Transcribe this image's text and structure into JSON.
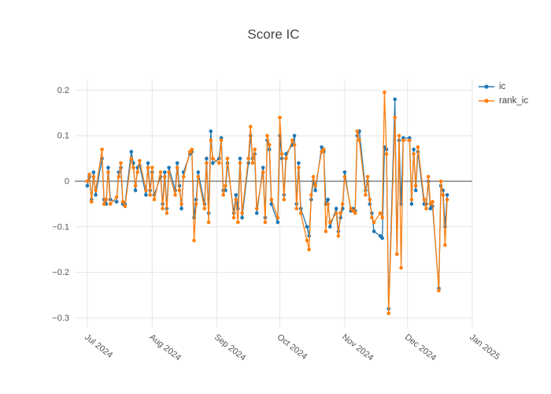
{
  "chart_data": {
    "type": "line",
    "mode": "lines+markers",
    "marker": "circle",
    "title": "Score IC",
    "xlabel": "",
    "ylabel": "",
    "grid": true,
    "legend_position": "top-right-outside",
    "ylim": [
      -0.32,
      0.225
    ],
    "x_range": [
      "2024-06-25",
      "2025-01-01"
    ],
    "y_ticks": [
      0.2,
      0.1,
      0,
      -0.1,
      -0.2,
      -0.3
    ],
    "y_tick_labels": [
      "0.2",
      "0.1",
      "0",
      "−0.1",
      "−0.2",
      "−0.3"
    ],
    "x_ticks": [
      "2024-07-01",
      "2024-08-01",
      "2024-09-01",
      "2024-10-01",
      "2024-11-01",
      "2024-12-01",
      "2025-01-01"
    ],
    "x_tick_labels": [
      "Jul 2024",
      "Aug 2024",
      "Sep 2024",
      "Oct 2024",
      "Nov 2024",
      "Dec 2024",
      "Jan 2025"
    ],
    "x": [
      "2024-07-01",
      "2024-07-02",
      "2024-07-03",
      "2024-07-04",
      "2024-07-05",
      "2024-07-08",
      "2024-07-09",
      "2024-07-10",
      "2024-07-11",
      "2024-07-12",
      "2024-07-15",
      "2024-07-16",
      "2024-07-17",
      "2024-07-18",
      "2024-07-19",
      "2024-07-22",
      "2024-07-23",
      "2024-07-24",
      "2024-07-25",
      "2024-07-26",
      "2024-07-29",
      "2024-07-30",
      "2024-07-31",
      "2024-08-01",
      "2024-08-02",
      "2024-08-05",
      "2024-08-06",
      "2024-08-07",
      "2024-08-08",
      "2024-08-09",
      "2024-08-12",
      "2024-08-13",
      "2024-08-14",
      "2024-08-15",
      "2024-08-16",
      "2024-08-19",
      "2024-08-20",
      "2024-08-21",
      "2024-08-22",
      "2024-08-23",
      "2024-08-26",
      "2024-08-27",
      "2024-08-28",
      "2024-08-29",
      "2024-08-30",
      "2024-09-02",
      "2024-09-03",
      "2024-09-04",
      "2024-09-05",
      "2024-09-06",
      "2024-09-09",
      "2024-09-10",
      "2024-09-11",
      "2024-09-12",
      "2024-09-13",
      "2024-09-16",
      "2024-09-17",
      "2024-09-18",
      "2024-09-19",
      "2024-09-20",
      "2024-09-23",
      "2024-09-24",
      "2024-09-25",
      "2024-09-26",
      "2024-09-27",
      "2024-09-30",
      "2024-10-01",
      "2024-10-02",
      "2024-10-03",
      "2024-10-04",
      "2024-10-07",
      "2024-10-08",
      "2024-10-09",
      "2024-10-10",
      "2024-10-11",
      "2024-10-14",
      "2024-10-15",
      "2024-10-16",
      "2024-10-17",
      "2024-10-18",
      "2024-10-21",
      "2024-10-22",
      "2024-10-23",
      "2024-10-24",
      "2024-10-25",
      "2024-10-28",
      "2024-10-29",
      "2024-10-30",
      "2024-10-31",
      "2024-11-01",
      "2024-11-04",
      "2024-11-05",
      "2024-11-06",
      "2024-11-07",
      "2024-11-08",
      "2024-11-11",
      "2024-11-12",
      "2024-11-13",
      "2024-11-14",
      "2024-11-15",
      "2024-11-18",
      "2024-11-19",
      "2024-11-20",
      "2024-11-21",
      "2024-11-22",
      "2024-11-25",
      "2024-11-26",
      "2024-11-27",
      "2024-11-28",
      "2024-11-29",
      "2024-12-02",
      "2024-12-03",
      "2024-12-04",
      "2024-12-05",
      "2024-12-06",
      "2024-12-09",
      "2024-12-10",
      "2024-12-11",
      "2024-12-12",
      "2024-12-13",
      "2024-12-16",
      "2024-12-17",
      "2024-12-18",
      "2024-12-19",
      "2024-12-20"
    ],
    "series": [
      {
        "name": "ic",
        "color": "#1f77b4",
        "values": [
          -0.01,
          0.01,
          -0.04,
          0.02,
          -0.03,
          0.05,
          -0.04,
          -0.05,
          0.03,
          -0.04,
          -0.045,
          0.02,
          0.03,
          -0.05,
          -0.05,
          0.065,
          0.04,
          -0.02,
          0.03,
          0.035,
          -0.03,
          0.04,
          -0.02,
          0.02,
          -0.03,
          0.01,
          -0.05,
          0.02,
          -0.06,
          0.03,
          -0.02,
          0.04,
          -0.01,
          -0.06,
          0.02,
          0.06,
          0.065,
          -0.08,
          -0.04,
          0.02,
          -0.05,
          0.05,
          -0.07,
          0.11,
          0.04,
          0.05,
          0.095,
          -0.02,
          -0.02,
          0.04,
          -0.07,
          -0.03,
          -0.06,
          0.05,
          -0.08,
          0.04,
          0.1,
          0.05,
          0.06,
          -0.07,
          0.03,
          -0.08,
          0.09,
          0.07,
          -0.05,
          -0.09,
          0.1,
          0.05,
          -0.03,
          0.06,
          0.08,
          0.1,
          -0.05,
          0.04,
          -0.06,
          -0.1,
          -0.12,
          -0.04,
          0,
          -0.02,
          0.075,
          0.065,
          -0.05,
          -0.04,
          -0.1,
          -0.06,
          -0.11,
          -0.08,
          -0.06,
          0.02,
          -0.065,
          -0.06,
          -0.065,
          0.1,
          0.11,
          -0.02,
          0,
          -0.05,
          -0.07,
          -0.11,
          -0.12,
          -0.125,
          0.075,
          0.07,
          -0.28,
          0.18,
          -0.16,
          0.09,
          -0.05,
          0.095,
          0.095,
          -0.05,
          0.07,
          -0.02,
          0.065,
          -0.05,
          -0.05,
          0,
          -0.06,
          -0.055,
          -0.235,
          -0.01,
          -0.02,
          -0.1,
          -0.03
        ]
      },
      {
        "name": "rank_ic",
        "color": "#ff7f0e",
        "values": [
          0,
          0.015,
          -0.045,
          0.01,
          -0.02,
          0.07,
          -0.05,
          -0.04,
          0.02,
          -0.05,
          -0.035,
          0.01,
          0.04,
          -0.045,
          -0.055,
          0.05,
          0.03,
          -0.01,
          0.02,
          0.045,
          -0.02,
          0.03,
          -0.03,
          0.03,
          -0.04,
          0.02,
          -0.06,
          0.01,
          -0.07,
          0.02,
          -0.03,
          0.03,
          -0.02,
          -0.05,
          0.01,
          0.065,
          0.07,
          -0.13,
          -0.05,
          0.01,
          -0.06,
          0.04,
          -0.09,
          0.09,
          0.05,
          0.04,
          0.09,
          -0.03,
          -0.01,
          0.05,
          -0.08,
          -0.04,
          -0.09,
          0.04,
          -0.07,
          0.05,
          0.12,
          0.04,
          0.07,
          -0.06,
          0.02,
          -0.09,
          0.1,
          0.08,
          -0.04,
          -0.08,
          0.14,
          0.06,
          -0.04,
          0.05,
          0.09,
          0.08,
          -0.06,
          0.03,
          -0.07,
          -0.13,
          -0.15,
          -0.03,
          0.01,
          -0.01,
          0.065,
          0.07,
          -0.11,
          -0.05,
          -0.09,
          -0.07,
          -0.12,
          -0.07,
          -0.05,
          0.01,
          -0.06,
          -0.065,
          -0.07,
          0.11,
          0.09,
          -0.03,
          0.01,
          -0.04,
          -0.08,
          -0.09,
          -0.07,
          -0.08,
          0.195,
          0.06,
          -0.29,
          0.14,
          -0.16,
          0.1,
          -0.19,
          0.09,
          0.09,
          -0.04,
          0.06,
          -0.01,
          0.075,
          -0.04,
          -0.06,
          0.01,
          -0.05,
          -0.045,
          -0.24,
          0,
          -0.03,
          -0.14,
          -0.04
        ]
      }
    ]
  },
  "colors": {
    "background": "#ffffff",
    "grid": "#e5e5e5",
    "zeroline": "#444444",
    "tick_text": "#555555",
    "title_text": "#444444",
    "series_ic": "#1f77b4",
    "series_rank_ic": "#ff7f0e"
  }
}
